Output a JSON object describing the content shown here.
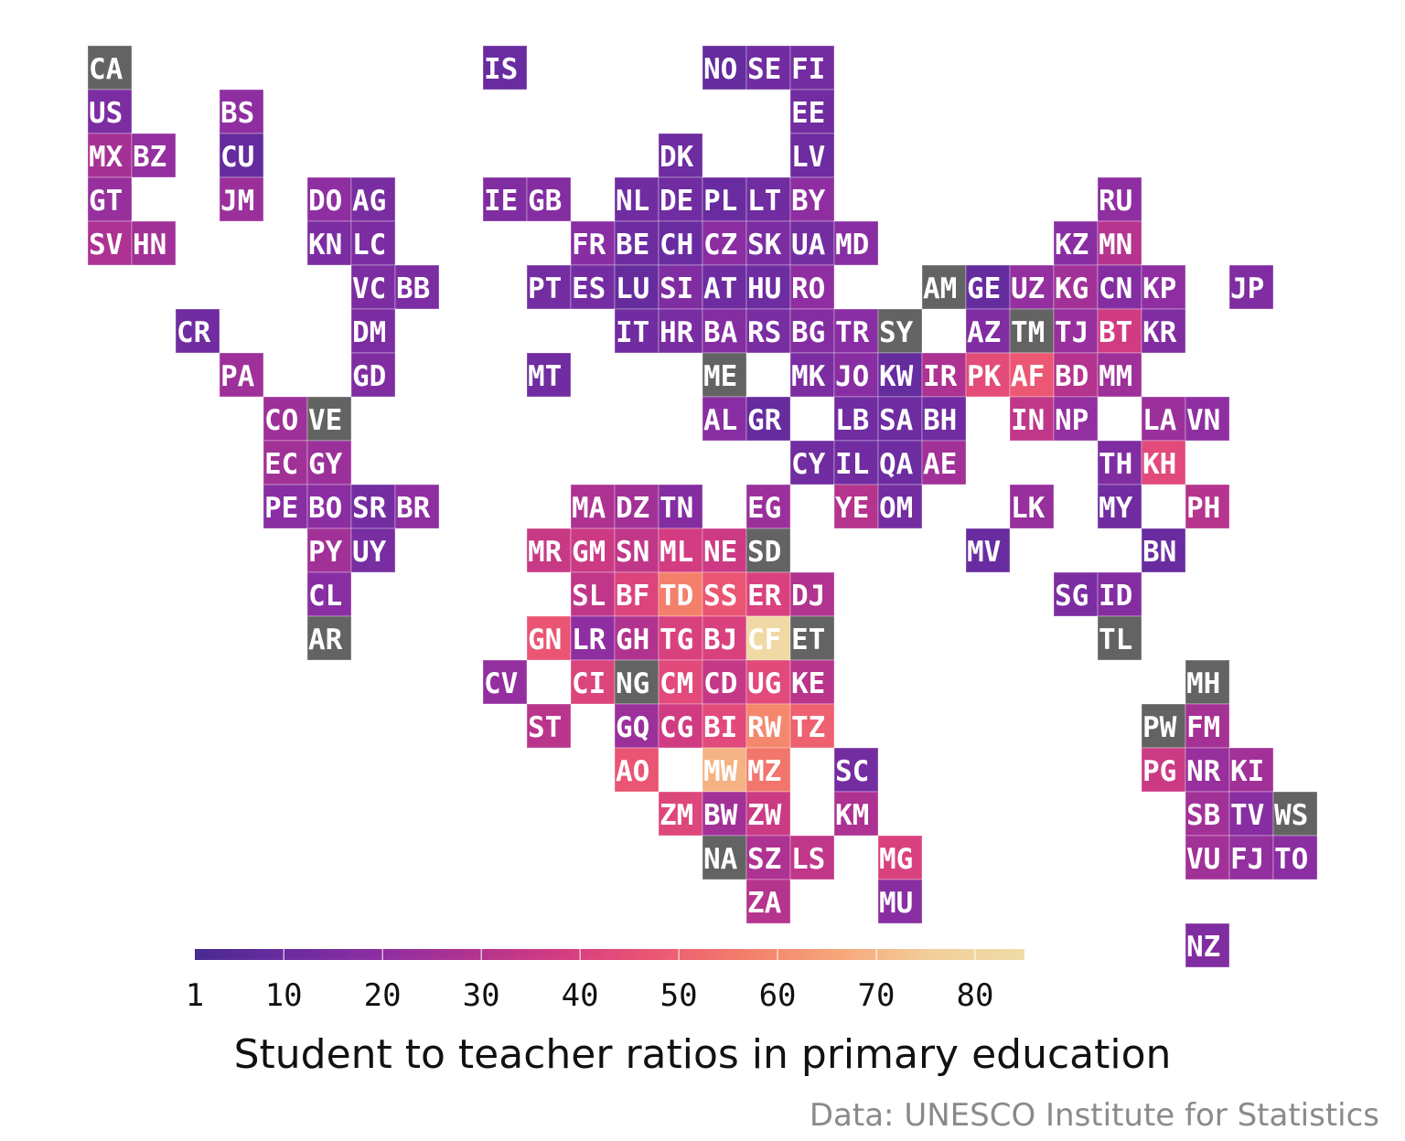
{
  "title": "Student to teacher ratios in primary education",
  "caption": "Data: UNESCO Institute for Statistics",
  "legend": {
    "ticks": [
      1,
      10,
      20,
      30,
      40,
      50,
      60,
      70,
      80
    ],
    "range": [
      1,
      85
    ],
    "colors": [
      "#4a2a92",
      "#6a2ca0",
      "#8e2ea2",
      "#b1338f",
      "#d53c80",
      "#ec5773",
      "#f47f6a",
      "#f6a77a",
      "#f2cf9a",
      "#efdca8"
    ]
  },
  "no_data_color": "#636363",
  "tiles": [
    {
      "code": "CA",
      "col": 0,
      "row": 0,
      "value": null
    },
    {
      "code": "IS",
      "col": 9,
      "row": 0,
      "value": 10
    },
    {
      "code": "NO",
      "col": 14,
      "row": 0,
      "value": 9
    },
    {
      "code": "SE",
      "col": 15,
      "row": 0,
      "value": 12
    },
    {
      "code": "FI",
      "col": 16,
      "row": 0,
      "value": 13
    },
    {
      "code": "US",
      "col": 0,
      "row": 1,
      "value": 15
    },
    {
      "code": "BS",
      "col": 3,
      "row": 1,
      "value": 20
    },
    {
      "code": "EE",
      "col": 16,
      "row": 1,
      "value": 12
    },
    {
      "code": "MX",
      "col": 0,
      "row": 2,
      "value": 26
    },
    {
      "code": "BZ",
      "col": 1,
      "row": 2,
      "value": 21
    },
    {
      "code": "CU",
      "col": 3,
      "row": 2,
      "value": 9
    },
    {
      "code": "DK",
      "col": 13,
      "row": 2,
      "value": 11
    },
    {
      "code": "LV",
      "col": 16,
      "row": 2,
      "value": 11
    },
    {
      "code": "GT",
      "col": 0,
      "row": 3,
      "value": 22
    },
    {
      "code": "JM",
      "col": 3,
      "row": 3,
      "value": 23
    },
    {
      "code": "DO",
      "col": 5,
      "row": 3,
      "value": 20
    },
    {
      "code": "AG",
      "col": 6,
      "row": 3,
      "value": 14
    },
    {
      "code": "IE",
      "col": 9,
      "row": 3,
      "value": 16
    },
    {
      "code": "GB",
      "col": 10,
      "row": 3,
      "value": 17
    },
    {
      "code": "NL",
      "col": 12,
      "row": 3,
      "value": 12
    },
    {
      "code": "DE",
      "col": 13,
      "row": 3,
      "value": 12
    },
    {
      "code": "PL",
      "col": 14,
      "row": 3,
      "value": 10
    },
    {
      "code": "LT",
      "col": 15,
      "row": 3,
      "value": 12
    },
    {
      "code": "BY",
      "col": 16,
      "row": 3,
      "value": 20
    },
    {
      "code": "RU",
      "col": 23,
      "row": 3,
      "value": 20
    },
    {
      "code": "SV",
      "col": 0,
      "row": 4,
      "value": 28
    },
    {
      "code": "HN",
      "col": 1,
      "row": 4,
      "value": 25
    },
    {
      "code": "KN",
      "col": 5,
      "row": 4,
      "value": 15
    },
    {
      "code": "LC",
      "col": 6,
      "row": 4,
      "value": 15
    },
    {
      "code": "FR",
      "col": 11,
      "row": 4,
      "value": 18
    },
    {
      "code": "BE",
      "col": 12,
      "row": 4,
      "value": 11
    },
    {
      "code": "CH",
      "col": 13,
      "row": 4,
      "value": 10
    },
    {
      "code": "CZ",
      "col": 14,
      "row": 4,
      "value": 19
    },
    {
      "code": "SK",
      "col": 15,
      "row": 4,
      "value": 15
    },
    {
      "code": "UA",
      "col": 16,
      "row": 4,
      "value": 13
    },
    {
      "code": "MD",
      "col": 17,
      "row": 4,
      "value": 18
    },
    {
      "code": "KZ",
      "col": 22,
      "row": 4,
      "value": 18
    },
    {
      "code": "MN",
      "col": 23,
      "row": 4,
      "value": 30
    },
    {
      "code": "VC",
      "col": 6,
      "row": 5,
      "value": 15
    },
    {
      "code": "BB",
      "col": 7,
      "row": 5,
      "value": 15
    },
    {
      "code": "PT",
      "col": 10,
      "row": 5,
      "value": 13
    },
    {
      "code": "ES",
      "col": 11,
      "row": 5,
      "value": 13
    },
    {
      "code": "LU",
      "col": 12,
      "row": 5,
      "value": 9
    },
    {
      "code": "SI",
      "col": 13,
      "row": 5,
      "value": 16
    },
    {
      "code": "AT",
      "col": 14,
      "row": 5,
      "value": 11
    },
    {
      "code": "HU",
      "col": 15,
      "row": 5,
      "value": 11
    },
    {
      "code": "RO",
      "col": 16,
      "row": 5,
      "value": 20
    },
    {
      "code": "AM",
      "col": 19,
      "row": 5,
      "value": null
    },
    {
      "code": "GE",
      "col": 20,
      "row": 5,
      "value": 9
    },
    {
      "code": "UZ",
      "col": 21,
      "row": 5,
      "value": 21
    },
    {
      "code": "KG",
      "col": 22,
      "row": 5,
      "value": 25
    },
    {
      "code": "CN",
      "col": 23,
      "row": 5,
      "value": 17
    },
    {
      "code": "KP",
      "col": 24,
      "row": 5,
      "value": 20
    },
    {
      "code": "JP",
      "col": 26,
      "row": 5,
      "value": 16
    },
    {
      "code": "CR",
      "col": 2,
      "row": 6,
      "value": 12
    },
    {
      "code": "DM",
      "col": 6,
      "row": 6,
      "value": 15
    },
    {
      "code": "IT",
      "col": 12,
      "row": 6,
      "value": 12
    },
    {
      "code": "HR",
      "col": 13,
      "row": 6,
      "value": 14
    },
    {
      "code": "BA",
      "col": 14,
      "row": 6,
      "value": 17
    },
    {
      "code": "RS",
      "col": 15,
      "row": 6,
      "value": 14
    },
    {
      "code": "BG",
      "col": 16,
      "row": 6,
      "value": 17
    },
    {
      "code": "TR",
      "col": 17,
      "row": 6,
      "value": 18
    },
    {
      "code": "SY",
      "col": 18,
      "row": 6,
      "value": null
    },
    {
      "code": "AZ",
      "col": 20,
      "row": 6,
      "value": 16
    },
    {
      "code": "TM",
      "col": 21,
      "row": 6,
      "value": null
    },
    {
      "code": "TJ",
      "col": 22,
      "row": 6,
      "value": 22
    },
    {
      "code": "BT",
      "col": 23,
      "row": 6,
      "value": 37
    },
    {
      "code": "KR",
      "col": 24,
      "row": 6,
      "value": 16
    },
    {
      "code": "PA",
      "col": 3,
      "row": 7,
      "value": 24
    },
    {
      "code": "GD",
      "col": 6,
      "row": 7,
      "value": 16
    },
    {
      "code": "MT",
      "col": 10,
      "row": 7,
      "value": 12
    },
    {
      "code": "ME",
      "col": 14,
      "row": 7,
      "value": null
    },
    {
      "code": "MK",
      "col": 16,
      "row": 7,
      "value": 15
    },
    {
      "code": "JO",
      "col": 17,
      "row": 7,
      "value": 18
    },
    {
      "code": "KW",
      "col": 18,
      "row": 7,
      "value": 9
    },
    {
      "code": "IR",
      "col": 19,
      "row": 7,
      "value": 28
    },
    {
      "code": "PK",
      "col": 20,
      "row": 7,
      "value": 44
    },
    {
      "code": "AF",
      "col": 21,
      "row": 7,
      "value": 48
    },
    {
      "code": "BD",
      "col": 22,
      "row": 7,
      "value": 30
    },
    {
      "code": "MM",
      "col": 23,
      "row": 7,
      "value": 24
    },
    {
      "code": "CO",
      "col": 4,
      "row": 8,
      "value": 24
    },
    {
      "code": "VE",
      "col": 5,
      "row": 8,
      "value": null
    },
    {
      "code": "AL",
      "col": 14,
      "row": 8,
      "value": 18
    },
    {
      "code": "GR",
      "col": 15,
      "row": 8,
      "value": 9
    },
    {
      "code": "LB",
      "col": 17,
      "row": 8,
      "value": 12
    },
    {
      "code": "SA",
      "col": 18,
      "row": 8,
      "value": 11
    },
    {
      "code": "BH",
      "col": 19,
      "row": 8,
      "value": 12
    },
    {
      "code": "IN",
      "col": 21,
      "row": 8,
      "value": 33
    },
    {
      "code": "NP",
      "col": 22,
      "row": 8,
      "value": 21
    },
    {
      "code": "LA",
      "col": 24,
      "row": 8,
      "value": 23
    },
    {
      "code": "VN",
      "col": 25,
      "row": 8,
      "value": 20
    },
    {
      "code": "EC",
      "col": 4,
      "row": 9,
      "value": 25
    },
    {
      "code": "GY",
      "col": 5,
      "row": 9,
      "value": 23
    },
    {
      "code": "CY",
      "col": 16,
      "row": 9,
      "value": 12
    },
    {
      "code": "IL",
      "col": 17,
      "row": 9,
      "value": 12
    },
    {
      "code": "QA",
      "col": 18,
      "row": 9,
      "value": 11
    },
    {
      "code": "AE",
      "col": 19,
      "row": 9,
      "value": 25
    },
    {
      "code": "TH",
      "col": 23,
      "row": 9,
      "value": 16
    },
    {
      "code": "KH",
      "col": 24,
      "row": 9,
      "value": 43
    },
    {
      "code": "PE",
      "col": 4,
      "row": 10,
      "value": 18
    },
    {
      "code": "BO",
      "col": 5,
      "row": 10,
      "value": 19
    },
    {
      "code": "SR",
      "col": 6,
      "row": 10,
      "value": 13
    },
    {
      "code": "BR",
      "col": 7,
      "row": 10,
      "value": 20
    },
    {
      "code": "MA",
      "col": 11,
      "row": 10,
      "value": 28
    },
    {
      "code": "DZ",
      "col": 12,
      "row": 10,
      "value": 25
    },
    {
      "code": "TN",
      "col": 13,
      "row": 10,
      "value": 17
    },
    {
      "code": "EG",
      "col": 15,
      "row": 10,
      "value": 23
    },
    {
      "code": "YE",
      "col": 17,
      "row": 10,
      "value": 30
    },
    {
      "code": "OM",
      "col": 18,
      "row": 10,
      "value": 13
    },
    {
      "code": "LK",
      "col": 21,
      "row": 10,
      "value": 22
    },
    {
      "code": "MY",
      "col": 23,
      "row": 10,
      "value": 12
    },
    {
      "code": "PH",
      "col": 25,
      "row": 10,
      "value": 30
    },
    {
      "code": "PY",
      "col": 5,
      "row": 11,
      "value": 25
    },
    {
      "code": "UY",
      "col": 6,
      "row": 11,
      "value": 14
    },
    {
      "code": "MR",
      "col": 10,
      "row": 11,
      "value": 35
    },
    {
      "code": "GM",
      "col": 11,
      "row": 11,
      "value": 36
    },
    {
      "code": "SN",
      "col": 12,
      "row": 11,
      "value": 33
    },
    {
      "code": "ML",
      "col": 13,
      "row": 11,
      "value": 38
    },
    {
      "code": "NE",
      "col": 14,
      "row": 11,
      "value": 36
    },
    {
      "code": "SD",
      "col": 15,
      "row": 11,
      "value": null
    },
    {
      "code": "MV",
      "col": 20,
      "row": 11,
      "value": 10
    },
    {
      "code": "BN",
      "col": 24,
      "row": 11,
      "value": 10
    },
    {
      "code": "CL",
      "col": 5,
      "row": 12,
      "value": 18
    },
    {
      "code": "SL",
      "col": 11,
      "row": 12,
      "value": 33
    },
    {
      "code": "BF",
      "col": 12,
      "row": 12,
      "value": 41
    },
    {
      "code": "TD",
      "col": 13,
      "row": 12,
      "value": 57
    },
    {
      "code": "SS",
      "col": 14,
      "row": 12,
      "value": 47
    },
    {
      "code": "ER",
      "col": 15,
      "row": 12,
      "value": 40
    },
    {
      "code": "DJ",
      "col": 16,
      "row": 12,
      "value": 29
    },
    {
      "code": "SG",
      "col": 22,
      "row": 12,
      "value": 15
    },
    {
      "code": "ID",
      "col": 23,
      "row": 12,
      "value": 17
    },
    {
      "code": "AR",
      "col": 5,
      "row": 13,
      "value": null
    },
    {
      "code": "GN",
      "col": 10,
      "row": 13,
      "value": 47
    },
    {
      "code": "LR",
      "col": 11,
      "row": 13,
      "value": 20
    },
    {
      "code": "GH",
      "col": 12,
      "row": 13,
      "value": 29
    },
    {
      "code": "TG",
      "col": 13,
      "row": 13,
      "value": 40
    },
    {
      "code": "BJ",
      "col": 14,
      "row": 13,
      "value": 40
    },
    {
      "code": "CF",
      "col": 15,
      "row": 13,
      "value": 83
    },
    {
      "code": "ET",
      "col": 16,
      "row": 13,
      "value": null
    },
    {
      "code": "TL",
      "col": 23,
      "row": 13,
      "value": null
    },
    {
      "code": "CV",
      "col": 9,
      "row": 14,
      "value": 21
    },
    {
      "code": "CI",
      "col": 11,
      "row": 14,
      "value": 41
    },
    {
      "code": "NG",
      "col": 12,
      "row": 14,
      "value": null
    },
    {
      "code": "CM",
      "col": 13,
      "row": 14,
      "value": 43
    },
    {
      "code": "CD",
      "col": 14,
      "row": 14,
      "value": 34
    },
    {
      "code": "UG",
      "col": 15,
      "row": 14,
      "value": 43
    },
    {
      "code": "KE",
      "col": 16,
      "row": 14,
      "value": 31
    },
    {
      "code": "MH",
      "col": 25,
      "row": 14,
      "value": null
    },
    {
      "code": "ST",
      "col": 10,
      "row": 15,
      "value": 31
    },
    {
      "code": "GQ",
      "col": 12,
      "row": 15,
      "value": 23
    },
    {
      "code": "CG",
      "col": 13,
      "row": 15,
      "value": 37
    },
    {
      "code": "BI",
      "col": 14,
      "row": 15,
      "value": 43
    },
    {
      "code": "RW",
      "col": 15,
      "row": 15,
      "value": 59
    },
    {
      "code": "TZ",
      "col": 16,
      "row": 15,
      "value": 50
    },
    {
      "code": "PW",
      "col": 24,
      "row": 15,
      "value": null
    },
    {
      "code": "FM",
      "col": 25,
      "row": 15,
      "value": 26
    },
    {
      "code": "AO",
      "col": 12,
      "row": 16,
      "value": 47
    },
    {
      "code": "MW",
      "col": 14,
      "row": 16,
      "value": 69
    },
    {
      "code": "MZ",
      "col": 15,
      "row": 16,
      "value": 55
    },
    {
      "code": "SC",
      "col": 17,
      "row": 16,
      "value": 13
    },
    {
      "code": "PG",
      "col": 24,
      "row": 16,
      "value": 36
    },
    {
      "code": "NR",
      "col": 25,
      "row": 16,
      "value": 22
    },
    {
      "code": "KI",
      "col": 26,
      "row": 16,
      "value": 25
    },
    {
      "code": "ZM",
      "col": 13,
      "row": 17,
      "value": 42
    },
    {
      "code": "BW",
      "col": 14,
      "row": 17,
      "value": 25
    },
    {
      "code": "ZW",
      "col": 15,
      "row": 17,
      "value": 36
    },
    {
      "code": "KM",
      "col": 17,
      "row": 17,
      "value": 28
    },
    {
      "code": "SB",
      "col": 25,
      "row": 17,
      "value": 25
    },
    {
      "code": "TV",
      "col": 26,
      "row": 17,
      "value": 18
    },
    {
      "code": "WS",
      "col": 27,
      "row": 17,
      "value": null
    },
    {
      "code": "NA",
      "col": 14,
      "row": 18,
      "value": null
    },
    {
      "code": "SZ",
      "col": 15,
      "row": 18,
      "value": 28
    },
    {
      "code": "LS",
      "col": 16,
      "row": 18,
      "value": 33
    },
    {
      "code": "MG",
      "col": 18,
      "row": 18,
      "value": 40
    },
    {
      "code": "VU",
      "col": 25,
      "row": 18,
      "value": 25
    },
    {
      "code": "FJ",
      "col": 26,
      "row": 18,
      "value": 21
    },
    {
      "code": "TO",
      "col": 27,
      "row": 18,
      "value": 19
    },
    {
      "code": "ZA",
      "col": 15,
      "row": 19,
      "value": 30
    },
    {
      "code": "MU",
      "col": 18,
      "row": 19,
      "value": 18
    },
    {
      "code": "NZ",
      "col": 25,
      "row": 20,
      "value": 16
    }
  ]
}
